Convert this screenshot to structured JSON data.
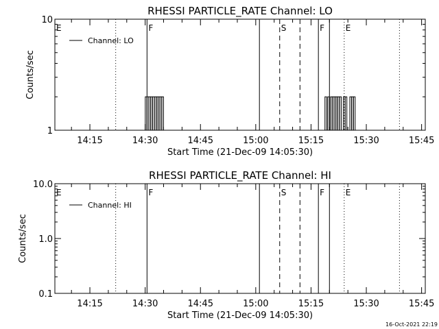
{
  "chart_data": [
    {
      "type": "line",
      "title": "RHESSI PARTICLE_RATE Channel: LO",
      "xlabel": "Start Time (21-Dec-09 14:05:30)",
      "ylabel": "Counts/sec",
      "y_scale": "log",
      "ylim": [
        1,
        10
      ],
      "y_ticks": [
        "1",
        "10"
      ],
      "xlim": [
        "14:05:30",
        "15:46:00"
      ],
      "x_ticks": [
        "14:15",
        "14:30",
        "14:45",
        "15:00",
        "15:15",
        "15:30",
        "15:45"
      ],
      "legend": {
        "label": "Channel: LO",
        "placement": "top-left"
      },
      "markers": [
        {
          "label": "E",
          "time": "14:05:30",
          "style": "none"
        },
        {
          "label": "",
          "time": "14:22:00",
          "style": "dotted"
        },
        {
          "label": "F",
          "time": "14:30:30",
          "style": "solid"
        },
        {
          "label": "",
          "time": "15:01:00",
          "style": "solid"
        },
        {
          "label": "S",
          "time": "15:06:30",
          "style": "dashed"
        },
        {
          "label": "",
          "time": "15:12:00",
          "style": "dashed"
        },
        {
          "label": "F",
          "time": "15:17:00",
          "style": "solid"
        },
        {
          "label": "",
          "time": "15:20:00",
          "style": "solid"
        },
        {
          "label": "E",
          "time": "15:24:00",
          "style": "dotted"
        },
        {
          "label": "",
          "time": "15:39:00",
          "style": "dotted"
        }
      ],
      "series": [
        {
          "name": "Channel: LO",
          "spikes": [
            {
              "time": "14:30:15",
              "value": 2
            },
            {
              "time": "14:30:45",
              "value": 2
            },
            {
              "time": "14:31:15",
              "value": 2
            },
            {
              "time": "14:31:45",
              "value": 2
            },
            {
              "time": "14:32:15",
              "value": 2
            },
            {
              "time": "14:32:45",
              "value": 2
            },
            {
              "time": "14:33:15",
              "value": 2
            },
            {
              "time": "14:33:45",
              "value": 2
            },
            {
              "time": "14:34:15",
              "value": 2
            },
            {
              "time": "14:34:45",
              "value": 2
            },
            {
              "time": "15:19:00",
              "value": 2
            },
            {
              "time": "15:19:45",
              "value": 2
            },
            {
              "time": "15:20:30",
              "value": 2
            },
            {
              "time": "15:21:00",
              "value": 2
            },
            {
              "time": "15:21:30",
              "value": 2
            },
            {
              "time": "15:22:00",
              "value": 2
            },
            {
              "time": "15:22:30",
              "value": 2
            },
            {
              "time": "15:23:00",
              "value": 2
            },
            {
              "time": "15:24:00",
              "value": 2
            },
            {
              "time": "15:24:30",
              "value": 2
            },
            {
              "time": "15:25:45",
              "value": 2
            },
            {
              "time": "15:26:15",
              "value": 2
            },
            {
              "time": "15:26:45",
              "value": 2
            }
          ]
        }
      ]
    },
    {
      "type": "line",
      "title": "RHESSI PARTICLE_RATE Channel: HI",
      "xlabel": "Start Time (21-Dec-09 14:05:30)",
      "ylabel": "Counts/sec",
      "y_scale": "log",
      "ylim": [
        0.1,
        10
      ],
      "y_ticks": [
        "0.1",
        "1.0",
        "10.0"
      ],
      "xlim": [
        "14:05:30",
        "15:46:00"
      ],
      "x_ticks": [
        "14:15",
        "14:30",
        "14:45",
        "15:00",
        "15:15",
        "15:30",
        "15:45"
      ],
      "legend": {
        "label": "Channel: HI",
        "placement": "top-left"
      },
      "markers": [
        {
          "label": "E",
          "time": "14:05:30",
          "style": "none"
        },
        {
          "label": "",
          "time": "14:22:00",
          "style": "dotted"
        },
        {
          "label": "F",
          "time": "14:30:30",
          "style": "solid"
        },
        {
          "label": "",
          "time": "15:01:00",
          "style": "solid"
        },
        {
          "label": "S",
          "time": "15:06:30",
          "style": "dashed"
        },
        {
          "label": "",
          "time": "15:12:00",
          "style": "dashed"
        },
        {
          "label": "F",
          "time": "15:17:00",
          "style": "solid"
        },
        {
          "label": "",
          "time": "15:20:00",
          "style": "solid"
        },
        {
          "label": "E",
          "time": "15:24:00",
          "style": "dotted"
        },
        {
          "label": "",
          "time": "15:39:00",
          "style": "dotted"
        }
      ],
      "series": [
        {
          "name": "Channel: HI",
          "spikes": []
        }
      ]
    }
  ],
  "footer": {
    "timestamp": "16-Oct-2021 22:19"
  }
}
